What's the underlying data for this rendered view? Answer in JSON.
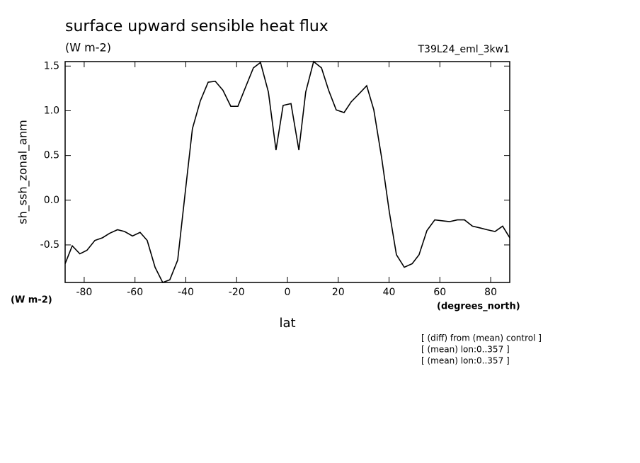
{
  "chart_data": {
    "type": "line",
    "title": "surface upward sensible heat flux",
    "subtitle": "(W m-2)",
    "run_label": "T39L24_eml_3kw1",
    "y_label": "sh_ssh_zonal_anm",
    "y_units": "(W m-2)",
    "x_label": "lat",
    "x_units": "(degrees_north)",
    "notes": [
      "[ (diff) from (mean) control ]",
      "[ (mean) lon:0..357 ]",
      "[ (mean) lon:0..357 ]"
    ],
    "x": [
      -87.5,
      -84.7,
      -81.7,
      -78.9,
      -75.8,
      -72.8,
      -70,
      -66.9,
      -64.1,
      -61,
      -58,
      -55.2,
      -52.1,
      -49.1,
      -46.3,
      -43.2,
      -40.1,
      -37.4,
      -34.3,
      -31.2,
      -28.4,
      -25.4,
      -22.3,
      -19.5,
      -16.4,
      -13.4,
      -10.6,
      -7.5,
      -4.5,
      -1.7,
      1.4,
      4.5,
      7.2,
      10.3,
      13.4,
      16.2,
      19.2,
      22.3,
      25.1,
      28.2,
      31.2,
      34,
      37.1,
      40.1,
      42.9,
      46,
      49.1,
      51.8,
      54.9,
      58,
      60.8,
      63.8,
      66.9,
      69.7,
      72.8,
      75.8,
      78.6,
      81.7,
      84.7,
      87.5
    ],
    "series": [
      {
        "color": "#000000",
        "values": [
          -0.71,
          -0.51,
          -0.6,
          -0.56,
          -0.45,
          -0.42,
          -0.37,
          -0.33,
          -0.35,
          -0.4,
          -0.36,
          -0.45,
          -0.75,
          -0.92,
          -0.89,
          -0.67,
          0.12,
          0.8,
          1.11,
          1.32,
          1.33,
          1.23,
          1.05,
          1.05,
          1.27,
          1.48,
          1.54,
          1.21,
          0.56,
          1.06,
          1.08,
          0.56,
          1.21,
          1.55,
          1.48,
          1.23,
          1.01,
          0.98,
          1.1,
          1.19,
          1.28,
          1.01,
          0.47,
          -0.13,
          -0.61,
          -0.75,
          -0.71,
          -0.61,
          -0.34,
          -0.22,
          -0.23,
          -0.24,
          -0.22,
          -0.22,
          -0.29,
          -0.31,
          -0.33,
          -0.35,
          -0.29,
          -0.42
        ]
      }
    ],
    "xlim": [
      -87.5,
      87.5
    ],
    "ylim": [
      -0.92,
      1.55
    ],
    "xticks": [
      -80,
      -60,
      -40,
      -20,
      0,
      20,
      40,
      60,
      80
    ],
    "yticks": [
      {
        "value": -0.5,
        "label": "-0.5"
      },
      {
        "value": 0,
        "label": "0.0"
      },
      0.5,
      {
        "value": 1,
        "label": "1.0"
      },
      1.5
    ]
  }
}
